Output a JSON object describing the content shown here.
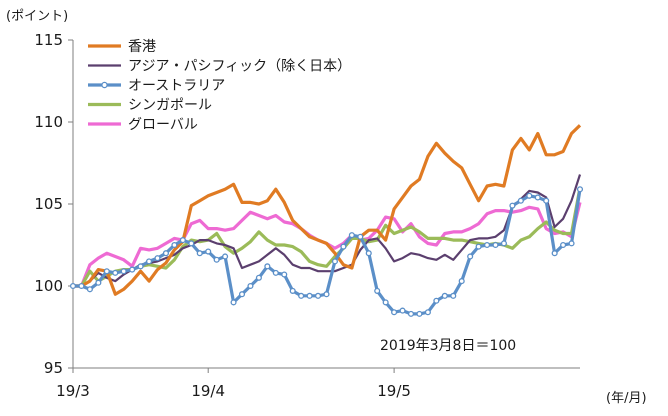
{
  "chart_data": {
    "type": "line",
    "y_unit_label": "(ポイント)",
    "x_unit_label": "(年/月)",
    "note": "2019年3月8日＝100",
    "ylim": [
      95,
      115
    ],
    "y_ticks": [
      "95",
      "100",
      "105",
      "110",
      "115"
    ],
    "x_ticks": [
      "19/3",
      "19/4",
      "19/5"
    ],
    "grid": false,
    "legend_position": "top-left",
    "x_count": 61,
    "x": [
      "2019-03-08",
      "2019-03-11",
      "2019-03-12",
      "2019-03-13",
      "2019-03-14",
      "2019-03-15",
      "2019-03-18",
      "2019-03-19",
      "2019-03-20",
      "2019-03-21",
      "2019-03-22",
      "2019-03-25",
      "2019-03-26",
      "2019-03-27",
      "2019-03-28",
      "2019-03-29",
      "2019-04-01",
      "2019-04-02",
      "2019-04-03",
      "2019-04-04",
      "2019-04-05",
      "2019-04-08",
      "2019-04-09",
      "2019-04-10",
      "2019-04-11",
      "2019-04-12",
      "2019-04-15",
      "2019-04-16",
      "2019-04-17",
      "2019-04-18",
      "2019-04-19",
      "2019-04-22",
      "2019-04-23",
      "2019-04-24",
      "2019-04-25",
      "2019-04-26",
      "2019-04-29",
      "2019-04-30",
      "2019-05-01",
      "2019-05-02",
      "2019-05-03",
      "2019-05-06",
      "2019-05-07",
      "2019-05-08",
      "2019-05-09",
      "2019-05-10",
      "2019-05-13",
      "2019-05-14",
      "2019-05-15",
      "2019-05-16",
      "2019-05-17",
      "2019-05-20",
      "2019-05-21",
      "2019-05-22",
      "2019-05-23",
      "2019-05-24",
      "2019-05-27",
      "2019-05-28",
      "2019-05-29",
      "2019-05-30",
      "2019-05-31"
    ],
    "series": [
      {
        "name": "香港",
        "color": "#E07B23",
        "marker": false,
        "values": [
          100.0,
          100.0,
          100.3,
          101.0,
          100.9,
          99.5,
          99.8,
          100.3,
          100.9,
          100.3,
          101.0,
          101.4,
          102.2,
          102.7,
          104.9,
          105.2,
          105.5,
          105.7,
          105.9,
          106.2,
          105.1,
          105.1,
          105.0,
          105.2,
          105.9,
          105.1,
          104.0,
          103.5,
          103.0,
          102.8,
          102.6,
          102.0,
          101.3,
          101.1,
          103.0,
          103.4,
          103.4,
          102.8,
          104.7,
          105.4,
          106.1,
          106.5,
          107.9,
          108.7,
          108.1,
          107.6,
          107.2,
          106.2,
          105.2,
          106.1,
          106.2,
          106.1,
          108.3,
          109.0,
          108.3,
          109.3,
          108.0,
          108.0,
          108.2,
          109.3,
          109.8
        ]
      },
      {
        "name": "アジア・パシフィック（除く日本）",
        "color": "#5B3F6E",
        "marker": false,
        "values": [
          100.0,
          100.0,
          100.3,
          100.8,
          100.5,
          100.3,
          100.7,
          101.0,
          101.3,
          101.4,
          101.5,
          101.7,
          101.9,
          102.3,
          102.5,
          102.8,
          102.8,
          102.6,
          102.5,
          102.3,
          101.1,
          101.3,
          101.5,
          101.9,
          102.3,
          101.9,
          101.3,
          101.1,
          101.1,
          100.9,
          100.9,
          100.9,
          101.1,
          101.3,
          102.2,
          102.8,
          102.9,
          102.3,
          101.5,
          101.7,
          102.0,
          101.9,
          101.7,
          101.6,
          101.9,
          101.6,
          102.2,
          102.8,
          102.9,
          102.9,
          103.0,
          103.4,
          104.8,
          105.3,
          105.8,
          105.7,
          105.4,
          103.6,
          104.1,
          105.2,
          106.8
        ]
      },
      {
        "name": "オーストラリア",
        "color": "#5B8FC8",
        "marker": true,
        "values": [
          100.0,
          100.0,
          99.8,
          100.2,
          100.9,
          100.8,
          100.9,
          101.0,
          101.2,
          101.5,
          101.7,
          102.0,
          102.5,
          102.8,
          102.6,
          102.0,
          102.1,
          101.6,
          101.8,
          99.0,
          99.5,
          100.0,
          100.5,
          101.2,
          100.8,
          100.7,
          99.7,
          99.4,
          99.4,
          99.4,
          99.5,
          101.5,
          102.4,
          103.1,
          103.0,
          102.0,
          99.7,
          99.0,
          98.4,
          98.5,
          98.3,
          98.3,
          98.4,
          99.1,
          99.4,
          99.4,
          100.3,
          101.8,
          102.4,
          102.5,
          102.5,
          102.6,
          104.9,
          105.2,
          105.5,
          105.4,
          105.2,
          102.0,
          102.5,
          102.6,
          105.9
        ]
      },
      {
        "name": "シンガポール",
        "color": "#9BBB59",
        "marker": false,
        "values": [
          100.0,
          100.0,
          100.9,
          100.3,
          100.6,
          100.9,
          101.0,
          101.0,
          101.2,
          101.3,
          101.2,
          101.1,
          101.6,
          102.4,
          102.8,
          102.7,
          102.8,
          103.2,
          102.4,
          102.0,
          102.3,
          102.7,
          103.3,
          102.8,
          102.5,
          102.5,
          102.4,
          102.1,
          101.5,
          101.3,
          101.2,
          101.8,
          102.3,
          102.9,
          102.9,
          102.7,
          102.8,
          103.7,
          103.2,
          103.4,
          103.6,
          103.3,
          102.9,
          102.9,
          102.9,
          102.8,
          102.8,
          102.7,
          102.6,
          102.5,
          102.6,
          102.5,
          102.3,
          102.8,
          103.0,
          103.5,
          103.9,
          103.4,
          103.2,
          103.2,
          106.0
        ]
      },
      {
        "name": "グローバル",
        "color": "#EE6AD3",
        "marker": false,
        "values": [
          100.0,
          100.0,
          101.3,
          101.7,
          102.0,
          101.8,
          101.6,
          101.2,
          102.3,
          102.2,
          102.3,
          102.6,
          102.9,
          102.8,
          103.8,
          104.0,
          103.5,
          103.5,
          103.4,
          103.5,
          104.0,
          104.5,
          104.3,
          104.1,
          104.3,
          103.9,
          103.8,
          103.5,
          103.1,
          102.8,
          102.6,
          102.3,
          102.6,
          103.1,
          102.8,
          102.9,
          103.4,
          104.2,
          104.1,
          103.3,
          103.8,
          103.0,
          102.6,
          102.5,
          103.2,
          103.3,
          103.3,
          103.5,
          103.8,
          104.4,
          104.6,
          104.6,
          104.5,
          104.6,
          104.8,
          104.7,
          103.5,
          103.2,
          103.3,
          103.0,
          105.1
        ]
      }
    ]
  }
}
